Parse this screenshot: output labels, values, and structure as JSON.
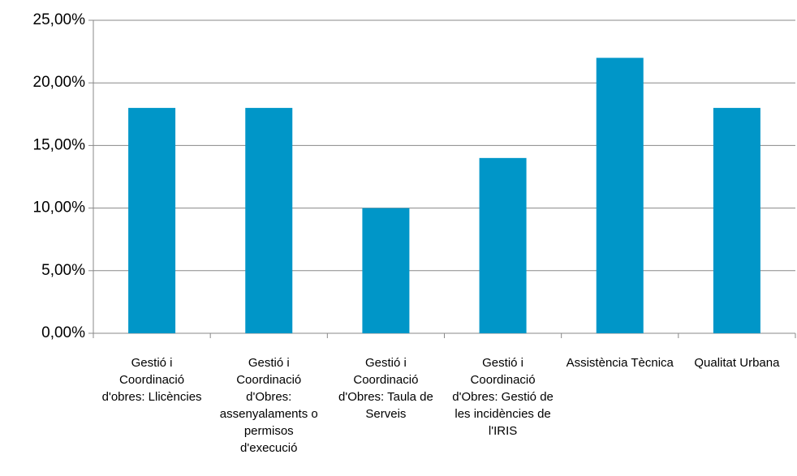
{
  "chart_data": {
    "type": "bar",
    "categories": [
      "Gestió i Coordinació d'obres: Llicències",
      "Gestió i Coordinació d'Obres: assenyalaments o permisos d'execució",
      "Gestió i Coordinació d'Obres: Taula de Serveis",
      "Gestió i Coordinació d'Obres: Gestió de les incidències de l'IRIS",
      "Assistència Tècnica",
      "Qualitat Urbana"
    ],
    "values": [
      18,
      18,
      10,
      14,
      22,
      18
    ],
    "color": "#0096c8",
    "ylim": [
      0,
      25
    ],
    "yticks": [
      {
        "value": 0,
        "label": "0,00%"
      },
      {
        "value": 5,
        "label": "5,00%"
      },
      {
        "value": 10,
        "label": "10,00%"
      },
      {
        "value": 15,
        "label": "15,00%"
      },
      {
        "value": 20,
        "label": "20,00%"
      },
      {
        "value": 25,
        "label": "25,00%"
      }
    ],
    "grid": true
  }
}
